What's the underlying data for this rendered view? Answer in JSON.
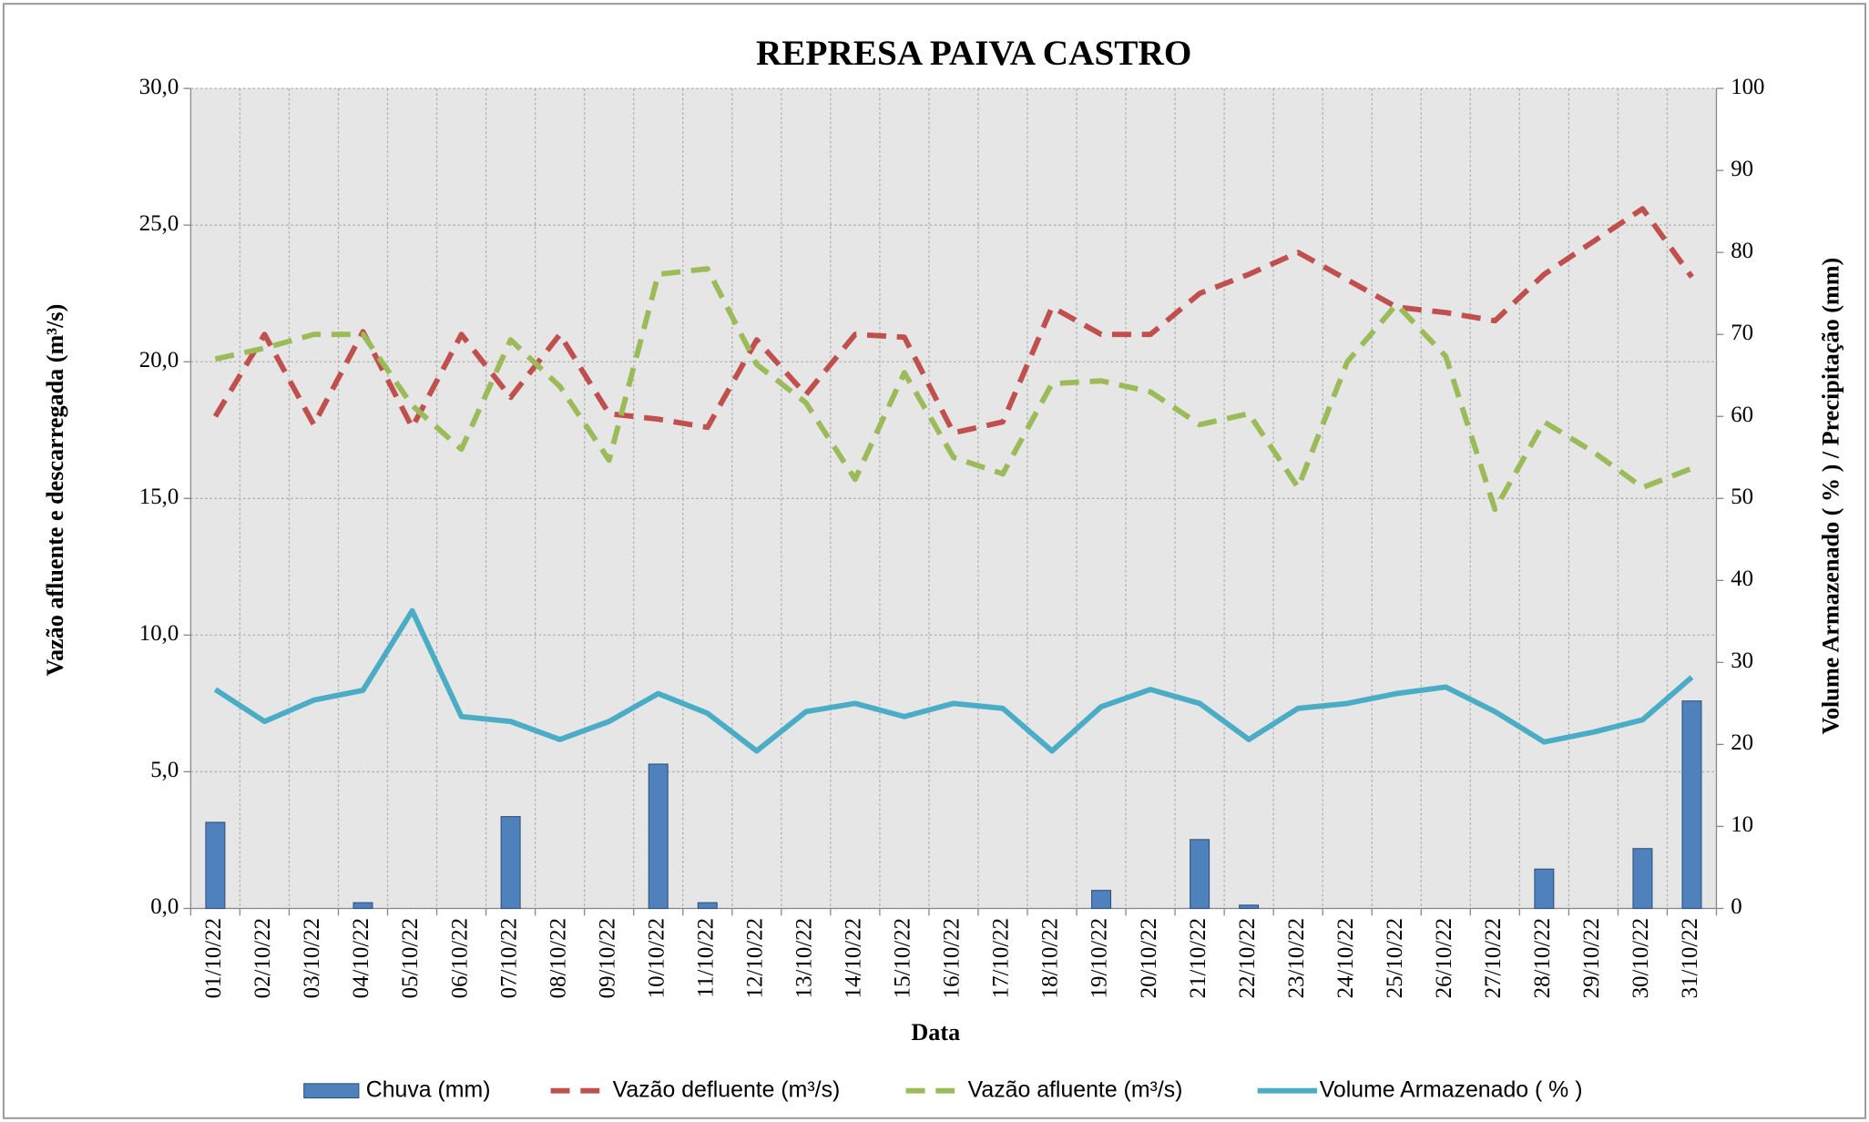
{
  "chart_data": {
    "type": "combo",
    "title": "REPRESA PAIVA CASTRO",
    "xlabel": "Data",
    "ylabel": "Vazão afluente e descarregada (m³/s)",
    "y2label": "Volume Armazenado  ( % ) / Precipitação  (mm)",
    "categories": [
      "01/10/22",
      "02/10/22",
      "03/10/22",
      "04/10/22",
      "05/10/22",
      "06/10/22",
      "07/10/22",
      "08/10/22",
      "09/10/22",
      "10/10/22",
      "11/10/22",
      "12/10/22",
      "13/10/22",
      "14/10/22",
      "15/10/22",
      "16/10/22",
      "17/10/22",
      "18/10/22",
      "19/10/22",
      "20/10/22",
      "21/10/22",
      "22/10/22",
      "23/10/22",
      "24/10/22",
      "25/10/22",
      "26/10/22",
      "27/10/22",
      "28/10/22",
      "29/10/22",
      "30/10/22",
      "31/10/22"
    ],
    "series": [
      {
        "name": "Chuva (mm)",
        "type": "bar",
        "axis": "y2",
        "color": "#4f81bd",
        "values": [
          10.5,
          0,
          0,
          0.7,
          0,
          0,
          11.2,
          0,
          0,
          17.6,
          0.7,
          0,
          0,
          0,
          0,
          0,
          0,
          0,
          2.2,
          0,
          8.4,
          0.4,
          0,
          0,
          0,
          0,
          0,
          4.8,
          0,
          7.3,
          25.3
        ]
      },
      {
        "name": "Vazão defluente (m³/s)",
        "type": "line",
        "dashed": true,
        "color": "#c0504d",
        "values": [
          18.0,
          21.0,
          17.7,
          21.1,
          17.6,
          21.0,
          18.7,
          21.0,
          18.1,
          17.9,
          17.6,
          20.8,
          18.8,
          21.0,
          20.9,
          17.4,
          17.8,
          22.0,
          21.0,
          21.0,
          22.5,
          23.2,
          24.0,
          23.0,
          22.0,
          21.8,
          21.5,
          23.2,
          24.4,
          25.6,
          23.1
        ]
      },
      {
        "name": "Vazão afluente (m³/s)",
        "type": "line",
        "dashed": true,
        "color": "#9bbb59",
        "values": [
          20.1,
          20.5,
          21.0,
          21.0,
          18.4,
          16.8,
          20.8,
          19.1,
          16.4,
          23.2,
          23.4,
          19.9,
          18.5,
          15.7,
          19.6,
          16.5,
          15.9,
          19.2,
          19.3,
          18.9,
          17.7,
          18.1,
          15.4,
          20.0,
          22.1,
          20.2,
          14.6,
          17.8,
          16.7,
          15.4,
          16.1
        ]
      },
      {
        "name": "Volume Armazenado ( % )",
        "type": "line",
        "axis": "y2",
        "dashed": false,
        "color": "#4bacc6",
        "values": [
          26.7,
          22.8,
          25.4,
          26.6,
          36.3,
          23.4,
          22.8,
          20.6,
          22.8,
          26.2,
          23.8,
          19.2,
          24.0,
          25.0,
          23.4,
          25.0,
          24.4,
          19.2,
          24.6,
          26.7,
          25.0,
          20.6,
          24.4,
          25.0,
          26.2,
          27.0,
          24.0,
          20.3,
          21.5,
          23.0,
          28.2
        ]
      }
    ],
    "ylim": [
      0,
      30
    ],
    "yticks": [
      {
        "value": 0,
        "label": "0,0"
      },
      {
        "value": 5,
        "label": "5,0"
      },
      {
        "value": 10,
        "label": "10,0"
      },
      {
        "value": 15,
        "label": "15,0"
      },
      {
        "value": 20,
        "label": "20,0"
      },
      {
        "value": 25,
        "label": "25,0"
      },
      {
        "value": 30,
        "label": "30,0"
      }
    ],
    "y2lim": [
      0,
      100
    ],
    "y2ticks": [
      0,
      10,
      20,
      30,
      40,
      50,
      60,
      70,
      80,
      90,
      100
    ],
    "grid": true,
    "legend": "bottom"
  }
}
